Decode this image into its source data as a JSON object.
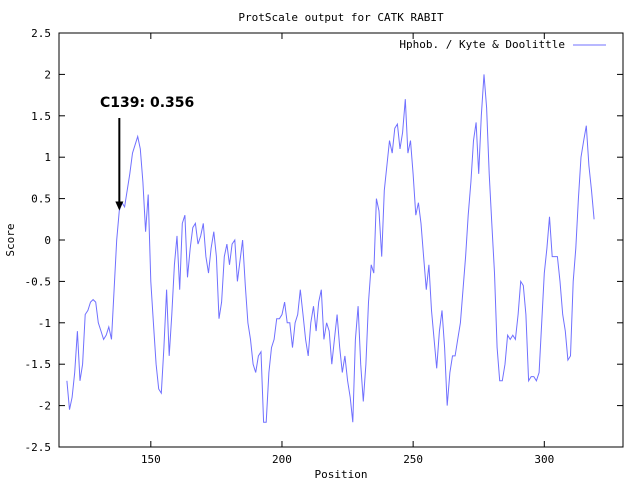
{
  "chart_data": {
    "type": "line",
    "title": "ProtScale output for CATK RABIT",
    "xlabel": "Position",
    "ylabel": "Score",
    "xlim": [
      115,
      330
    ],
    "ylim": [
      -2.5,
      2.5
    ],
    "x_ticks": [
      150,
      200,
      250,
      300
    ],
    "y_ticks": [
      -2.5,
      -2,
      -1.5,
      -1,
      -0.5,
      0,
      0.5,
      1,
      1.5,
      2,
      2.5
    ],
    "y_tick_labels": [
      "-2.5",
      "-2",
      "-1.5",
      "-1",
      "-0.5",
      "0",
      "0.5",
      "1",
      "1.5",
      "2",
      "2.5"
    ],
    "grid": false,
    "legend_position": "top-right",
    "series": [
      {
        "name": "Hphob. / Kyte & Doolittle",
        "color": "#7070ff",
        "points": [
          [
            118,
            -1.7
          ],
          [
            119,
            -2.05
          ],
          [
            120,
            -1.9
          ],
          [
            121,
            -1.6
          ],
          [
            122,
            -1.1
          ],
          [
            123,
            -1.7
          ],
          [
            124,
            -1.5
          ],
          [
            125,
            -0.9
          ],
          [
            126,
            -0.85
          ],
          [
            127,
            -0.75
          ],
          [
            128,
            -0.72
          ],
          [
            129,
            -0.75
          ],
          [
            130,
            -1.0
          ],
          [
            131,
            -1.1
          ],
          [
            132,
            -1.2
          ],
          [
            133,
            -1.15
          ],
          [
            134,
            -1.05
          ],
          [
            135,
            -1.2
          ],
          [
            136,
            -0.6
          ],
          [
            137,
            0.0
          ],
          [
            138,
            0.356
          ],
          [
            139,
            0.45
          ],
          [
            140,
            0.4
          ],
          [
            141,
            0.6
          ],
          [
            142,
            0.8
          ],
          [
            143,
            1.05
          ],
          [
            144,
            1.15
          ],
          [
            145,
            1.25
          ],
          [
            146,
            1.1
          ],
          [
            147,
            0.7
          ],
          [
            148,
            0.1
          ],
          [
            149,
            0.55
          ],
          [
            150,
            -0.5
          ],
          [
            151,
            -1.0
          ],
          [
            152,
            -1.5
          ],
          [
            153,
            -1.8
          ],
          [
            154,
            -1.85
          ],
          [
            155,
            -1.3
          ],
          [
            156,
            -0.6
          ],
          [
            157,
            -1.4
          ],
          [
            158,
            -0.9
          ],
          [
            159,
            -0.3
          ],
          [
            160,
            0.05
          ],
          [
            161,
            -0.6
          ],
          [
            162,
            0.2
          ],
          [
            163,
            0.3
          ],
          [
            164,
            -0.45
          ],
          [
            165,
            -0.1
          ],
          [
            166,
            0.15
          ],
          [
            167,
            0.2
          ],
          [
            168,
            -0.05
          ],
          [
            169,
            0.05
          ],
          [
            170,
            0.2
          ],
          [
            171,
            -0.2
          ],
          [
            172,
            -0.4
          ],
          [
            173,
            -0.1
          ],
          [
            174,
            0.1
          ],
          [
            175,
            -0.2
          ],
          [
            176,
            -0.95
          ],
          [
            177,
            -0.75
          ],
          [
            178,
            -0.2
          ],
          [
            179,
            -0.05
          ],
          [
            180,
            -0.3
          ],
          [
            181,
            -0.05
          ],
          [
            182,
            0.0
          ],
          [
            183,
            -0.5
          ],
          [
            184,
            -0.25
          ],
          [
            185,
            0.0
          ],
          [
            186,
            -0.55
          ],
          [
            187,
            -1.0
          ],
          [
            188,
            -1.2
          ],
          [
            189,
            -1.5
          ],
          [
            190,
            -1.6
          ],
          [
            191,
            -1.4
          ],
          [
            192,
            -1.35
          ],
          [
            193,
            -2.2
          ],
          [
            194,
            -2.2
          ],
          [
            195,
            -1.6
          ],
          [
            196,
            -1.3
          ],
          [
            197,
            -1.2
          ],
          [
            198,
            -0.95
          ],
          [
            199,
            -0.95
          ],
          [
            200,
            -0.9
          ],
          [
            201,
            -0.75
          ],
          [
            202,
            -1.0
          ],
          [
            203,
            -1.0
          ],
          [
            204,
            -1.3
          ],
          [
            205,
            -1.0
          ],
          [
            206,
            -0.9
          ],
          [
            207,
            -0.6
          ],
          [
            208,
            -0.9
          ],
          [
            209,
            -1.2
          ],
          [
            210,
            -1.4
          ],
          [
            211,
            -1.0
          ],
          [
            212,
            -0.8
          ],
          [
            213,
            -1.1
          ],
          [
            214,
            -0.75
          ],
          [
            215,
            -0.6
          ],
          [
            216,
            -1.2
          ],
          [
            217,
            -1.0
          ],
          [
            218,
            -1.1
          ],
          [
            219,
            -1.5
          ],
          [
            220,
            -1.2
          ],
          [
            221,
            -0.9
          ],
          [
            222,
            -1.3
          ],
          [
            223,
            -1.6
          ],
          [
            224,
            -1.4
          ],
          [
            225,
            -1.7
          ],
          [
            226,
            -1.9
          ],
          [
            227,
            -2.2
          ],
          [
            228,
            -1.2
          ],
          [
            229,
            -0.8
          ],
          [
            230,
            -1.5
          ],
          [
            231,
            -1.95
          ],
          [
            232,
            -1.5
          ],
          [
            233,
            -0.75
          ],
          [
            234,
            -0.3
          ],
          [
            235,
            -0.4
          ],
          [
            236,
            0.5
          ],
          [
            237,
            0.35
          ],
          [
            238,
            -0.2
          ],
          [
            239,
            0.6
          ],
          [
            240,
            0.9
          ],
          [
            241,
            1.2
          ],
          [
            242,
            1.05
          ],
          [
            243,
            1.35
          ],
          [
            244,
            1.4
          ],
          [
            245,
            1.1
          ],
          [
            246,
            1.3
          ],
          [
            247,
            1.7
          ],
          [
            248,
            1.05
          ],
          [
            249,
            1.2
          ],
          [
            250,
            0.8
          ],
          [
            251,
            0.3
          ],
          [
            252,
            0.45
          ],
          [
            253,
            0.2
          ],
          [
            254,
            -0.2
          ],
          [
            255,
            -0.6
          ],
          [
            256,
            -0.3
          ],
          [
            257,
            -0.85
          ],
          [
            258,
            -1.2
          ],
          [
            259,
            -1.55
          ],
          [
            260,
            -1.1
          ],
          [
            261,
            -0.85
          ],
          [
            262,
            -1.3
          ],
          [
            263,
            -2.0
          ],
          [
            264,
            -1.6
          ],
          [
            265,
            -1.4
          ],
          [
            266,
            -1.4
          ],
          [
            267,
            -1.2
          ],
          [
            268,
            -1.0
          ],
          [
            269,
            -0.6
          ],
          [
            270,
            -0.2
          ],
          [
            271,
            0.3
          ],
          [
            272,
            0.7
          ],
          [
            273,
            1.2
          ],
          [
            274,
            1.42
          ],
          [
            275,
            0.8
          ],
          [
            276,
            1.5
          ],
          [
            277,
            2.0
          ],
          [
            278,
            1.6
          ],
          [
            279,
            0.8
          ],
          [
            280,
            0.2
          ],
          [
            281,
            -0.4
          ],
          [
            282,
            -1.3
          ],
          [
            283,
            -1.7
          ],
          [
            284,
            -1.7
          ],
          [
            285,
            -1.5
          ],
          [
            286,
            -1.15
          ],
          [
            287,
            -1.2
          ],
          [
            288,
            -1.15
          ],
          [
            289,
            -1.2
          ],
          [
            290,
            -0.9
          ],
          [
            291,
            -0.5
          ],
          [
            292,
            -0.55
          ],
          [
            293,
            -0.9
          ],
          [
            294,
            -1.7
          ],
          [
            295,
            -1.65
          ],
          [
            296,
            -1.65
          ],
          [
            297,
            -1.7
          ],
          [
            298,
            -1.6
          ],
          [
            299,
            -1.0
          ],
          [
            300,
            -0.4
          ],
          [
            301,
            -0.1
          ],
          [
            302,
            0.28
          ],
          [
            303,
            -0.2
          ],
          [
            304,
            -0.2
          ],
          [
            305,
            -0.2
          ],
          [
            306,
            -0.5
          ],
          [
            307,
            -0.9
          ],
          [
            308,
            -1.1
          ],
          [
            309,
            -1.45
          ],
          [
            310,
            -1.4
          ],
          [
            311,
            -0.5
          ],
          [
            312,
            -0.1
          ],
          [
            313,
            0.5
          ],
          [
            314,
            1.0
          ],
          [
            315,
            1.2
          ],
          [
            316,
            1.38
          ],
          [
            317,
            0.9
          ],
          [
            318,
            0.6
          ],
          [
            319,
            0.25
          ]
        ]
      }
    ],
    "annotations": [
      {
        "text": "C139: 0.356",
        "x": 138,
        "y": 0.356
      }
    ]
  }
}
